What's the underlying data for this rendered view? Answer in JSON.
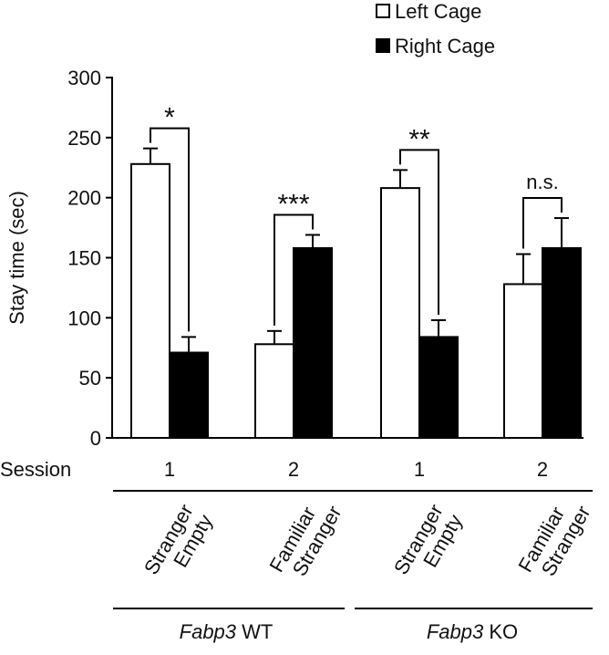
{
  "chart_data": {
    "type": "bar",
    "ylabel": "Stay time (sec)",
    "ylim": [
      0,
      300
    ],
    "yticks": [
      0,
      50,
      100,
      150,
      200,
      250,
      300
    ],
    "grid": false,
    "legend_position": "top-right",
    "colors": {
      "Left Cage": "#ffffff",
      "Right Cage": "#000000",
      "outline": "#000000"
    },
    "series": [
      {
        "name": "Left Cage",
        "values": [
          228,
          78,
          208,
          128
        ],
        "errors": [
          13,
          11,
          15,
          25
        ]
      },
      {
        "name": "Right Cage",
        "values": [
          71,
          158,
          84,
          158
        ],
        "errors": [
          13,
          11,
          14,
          25
        ]
      }
    ],
    "session_label": "Session",
    "sessions": [
      "1",
      "2",
      "1",
      "2"
    ],
    "cage_contents": [
      [
        "Stranger",
        "Empty"
      ],
      [
        "Familiar",
        "Stranger"
      ],
      [
        "Stranger",
        "Empty"
      ],
      [
        "Familiar",
        "Stranger"
      ]
    ],
    "significance": [
      "*",
      "***",
      "**",
      "n.s."
    ],
    "groups": [
      {
        "name_italic": "Fabp3",
        "name_suffix": " WT"
      },
      {
        "name_italic": "Fabp3",
        "name_suffix": " KO"
      }
    ]
  }
}
